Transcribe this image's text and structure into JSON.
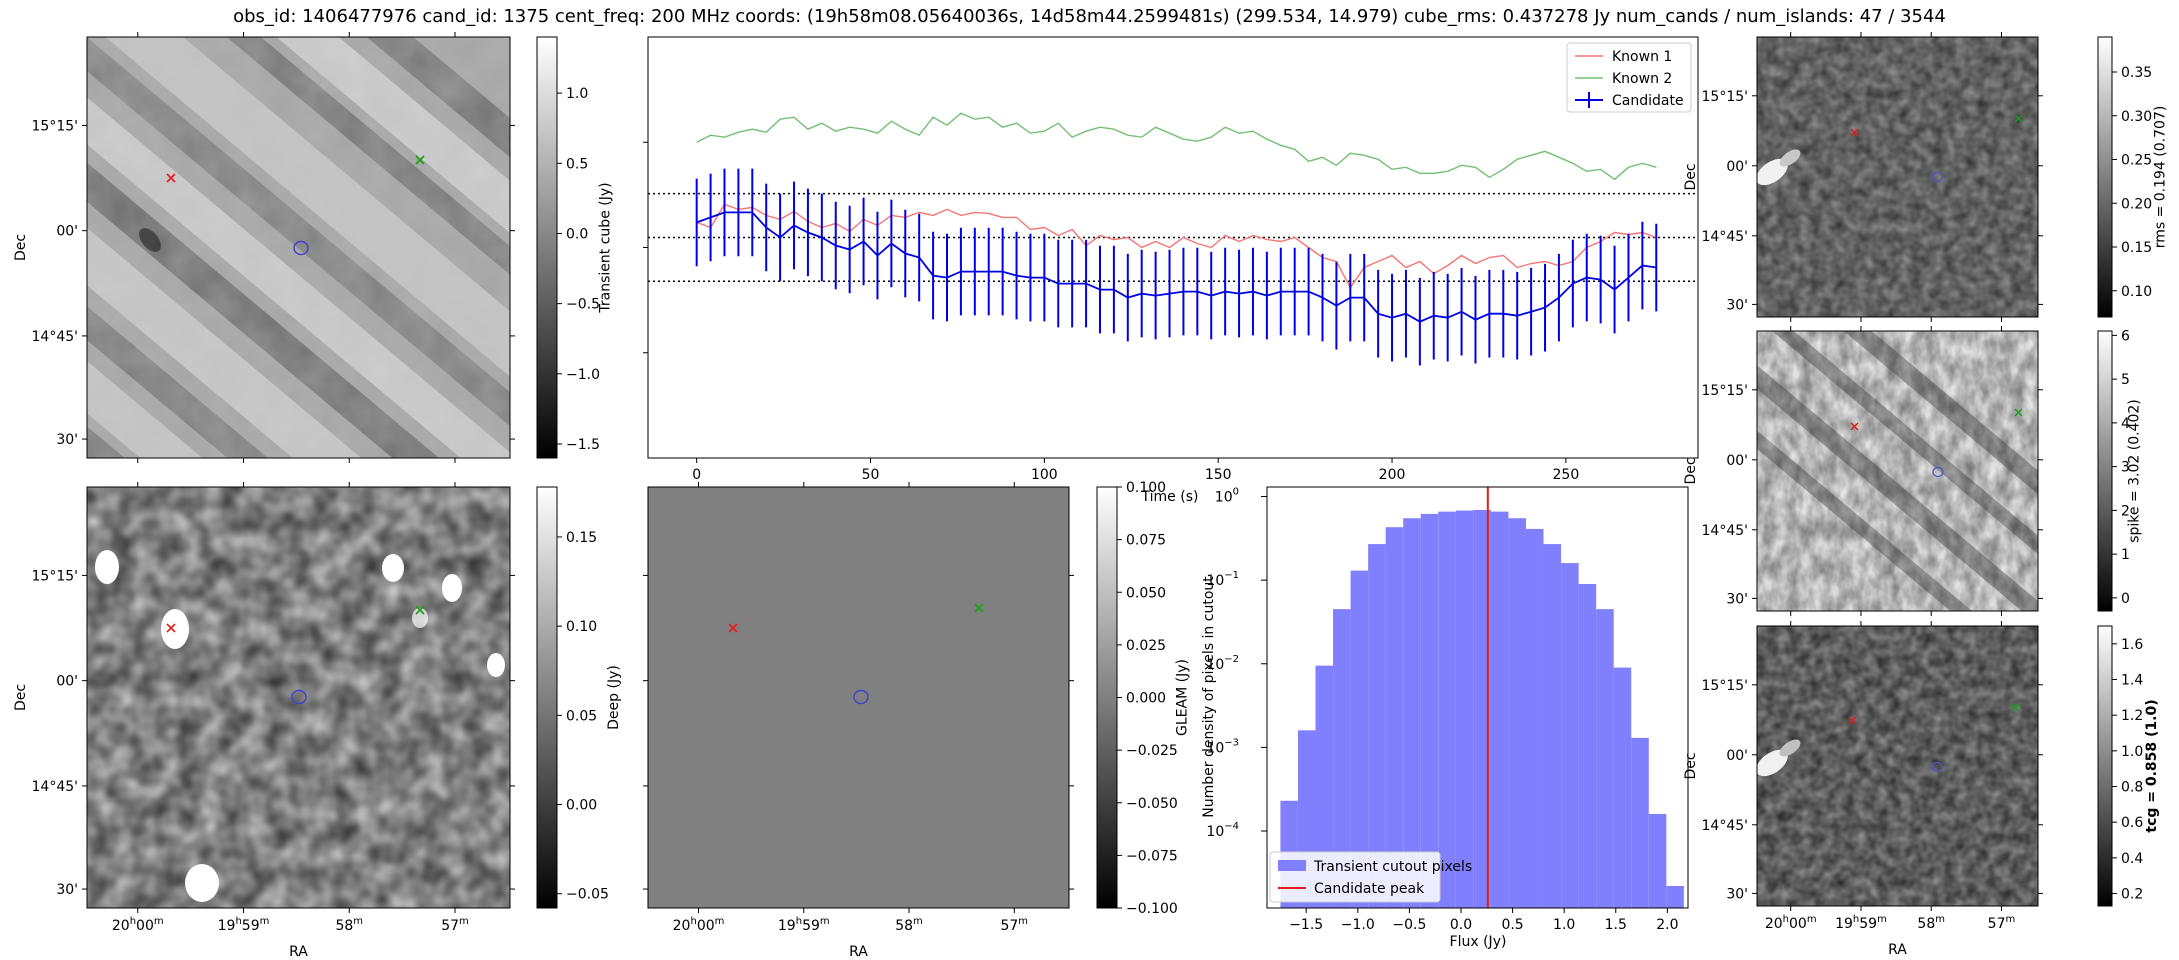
{
  "title": "obs_id: 1406477976 cand_id: 1375 cent_freq: 200 MHz coords: (19h58m08.05640036s, 14d58m44.2599481s) (299.534, 14.979) cube_rms: 0.437278 Jy num_cands / num_islands: 47 / 3544",
  "colors": {
    "known1": "#f87474",
    "known2": "#75bf75",
    "candidate": "#0000e6",
    "hist": "#8080ff",
    "peak": "#e81a1a",
    "marker_red": "#e61a1a",
    "marker_green": "#1a9e1a",
    "contour": "#4040d0"
  },
  "images": [
    {
      "id": "transient",
      "colorbar_label": "Transient cube (Jy)",
      "cbar_ticks": [
        "1.0",
        "0.5",
        "0.0",
        "−0.5",
        "−1.0",
        "−1.5"
      ],
      "cbar_values": [
        1.0,
        0.5,
        0.0,
        -0.5,
        -1.0,
        -1.5
      ],
      "vmin": -1.6,
      "vmax": 1.4,
      "dec_ticks": [
        "15°15'",
        "00'",
        "14°45'",
        "30'"
      ],
      "ylabel": "Dec"
    },
    {
      "id": "deep",
      "colorbar_label": "Deep (Jy)",
      "cbar_ticks": [
        "0.15",
        "0.10",
        "0.05",
        "0.00",
        "−0.05"
      ],
      "cbar_values": [
        0.15,
        0.1,
        0.05,
        0.0,
        -0.05
      ],
      "vmin": -0.058,
      "vmax": 0.178,
      "dec_ticks": [
        "15°15'",
        "00'",
        "14°45'",
        "30'"
      ],
      "ylabel": "Dec",
      "ra_ticks": [
        "20h00m",
        "19h59m",
        "58m",
        "57m"
      ],
      "xlabel": "RA"
    },
    {
      "id": "gleam",
      "colorbar_label": "GLEAM (Jy)",
      "cbar_ticks": [
        "0.100",
        "0.075",
        "0.050",
        "0.025",
        "0.000",
        "−0.025",
        "−0.050",
        "−0.075",
        "−0.100"
      ],
      "cbar_values": [
        0.1,
        0.075,
        0.05,
        0.025,
        0.0,
        -0.025,
        -0.05,
        -0.075,
        -0.1
      ],
      "vmin": -0.1,
      "vmax": 0.1,
      "ra_ticks": [
        "20h00m",
        "19h59m",
        "58m",
        "57m"
      ],
      "xlabel": "RA"
    },
    {
      "id": "rms",
      "colorbar_label": "rms = 0.194 (0.707)",
      "cbar_ticks": [
        "0.35",
        "0.30",
        "0.25",
        "0.20",
        "0.15",
        "0.10"
      ],
      "cbar_values": [
        0.35,
        0.3,
        0.25,
        0.2,
        0.15,
        0.1
      ],
      "vmin": 0.07,
      "vmax": 0.39,
      "dec_ticks": [
        "15°15'",
        "00'",
        "14°45'",
        "30'"
      ],
      "ylabel": "Dec"
    },
    {
      "id": "spike",
      "colorbar_label": "spike = 3.02 (0.402)",
      "cbar_ticks": [
        "6",
        "5",
        "4",
        "3",
        "2",
        "1",
        "0"
      ],
      "cbar_values": [
        6,
        5,
        4,
        3,
        2,
        1,
        0
      ],
      "vmin": -0.3,
      "vmax": 6.1,
      "dec_ticks": [
        "15°15'",
        "00'",
        "14°45'",
        "30'"
      ],
      "ylabel": "Dec"
    },
    {
      "id": "tcg",
      "colorbar_label": "tcg = 0.858 (1.0)",
      "cbar_ticks": [
        "1.6",
        "1.4",
        "1.2",
        "1.0",
        "0.8",
        "0.6",
        "0.4",
        "0.2"
      ],
      "cbar_values": [
        1.6,
        1.4,
        1.2,
        1.0,
        0.8,
        0.6,
        0.4,
        0.2
      ],
      "vmin": 0.13,
      "vmax": 1.7,
      "dec_ticks": [
        "15°15'",
        "00'",
        "14°45'",
        "30'"
      ],
      "ylabel": "Dec",
      "ra_ticks": [
        "20h00m",
        "19h59m",
        "58m",
        "57m"
      ],
      "xlabel": "RA"
    }
  ],
  "chart_data": [
    {
      "type": "line",
      "title": "",
      "xlabel": "Time (s)",
      "ylabel": "",
      "xlim": [
        -14,
        288
      ],
      "ylim": [
        -2.2,
        2.0
      ],
      "x_ticks": [
        0,
        50,
        100,
        150,
        200,
        250
      ],
      "hlines": [
        0.437,
        0.0,
        -0.437
      ],
      "legend_position": "top-right",
      "x": [
        0,
        4,
        8,
        12,
        16,
        20,
        24,
        28,
        32,
        36,
        40,
        44,
        48,
        52,
        56,
        60,
        64,
        68,
        72,
        76,
        80,
        84,
        88,
        92,
        96,
        100,
        104,
        108,
        112,
        116,
        120,
        124,
        128,
        132,
        136,
        140,
        144,
        148,
        152,
        156,
        160,
        164,
        168,
        172,
        176,
        180,
        184,
        188,
        192,
        196,
        200,
        204,
        208,
        212,
        216,
        220,
        224,
        228,
        232,
        236,
        240,
        244,
        248,
        252,
        256,
        260,
        264,
        268,
        272,
        276
      ],
      "series": [
        {
          "name": "Known 1",
          "values": [
            0.15,
            0.1,
            0.33,
            0.28,
            0.3,
            0.22,
            0.18,
            0.26,
            0.16,
            0.1,
            0.14,
            0.06,
            0.18,
            0.12,
            0.22,
            0.2,
            0.25,
            0.22,
            0.28,
            0.22,
            0.25,
            0.24,
            0.2,
            0.2,
            0.08,
            0.1,
            0.02,
            0.08,
            -0.08,
            0.02,
            -0.02,
            0.0,
            -0.1,
            -0.04,
            -0.1,
            0.0,
            -0.06,
            -0.1,
            0.02,
            -0.04,
            0.02,
            -0.02,
            -0.04,
            0.0,
            -0.1,
            -0.2,
            -0.24,
            -0.5,
            -0.3,
            -0.24,
            -0.18,
            -0.3,
            -0.24,
            -0.36,
            -0.28,
            -0.18,
            -0.26,
            -0.2,
            -0.18,
            -0.3,
            -0.26,
            -0.24,
            -0.28,
            -0.24,
            -0.1,
            -0.04,
            0.05,
            0.03,
            0.05,
            0.0
          ]
        },
        {
          "name": "Known 2",
          "values": [
            0.95,
            1.02,
            1.0,
            1.05,
            1.08,
            1.05,
            1.18,
            1.2,
            1.08,
            1.14,
            1.06,
            1.1,
            1.08,
            1.04,
            1.16,
            1.08,
            1.02,
            1.2,
            1.12,
            1.24,
            1.18,
            1.2,
            1.1,
            1.14,
            1.04,
            1.06,
            1.14,
            1.0,
            1.06,
            1.1,
            1.08,
            1.02,
            1.0,
            1.1,
            1.04,
            0.98,
            0.96,
            1.0,
            1.1,
            1.04,
            1.06,
            0.98,
            0.92,
            0.88,
            0.76,
            0.8,
            0.72,
            0.84,
            0.82,
            0.78,
            0.68,
            0.7,
            0.64,
            0.64,
            0.66,
            0.72,
            0.7,
            0.6,
            0.68,
            0.78,
            0.82,
            0.86,
            0.8,
            0.74,
            0.66,
            0.68,
            0.58,
            0.7,
            0.74,
            0.7
          ]
        },
        {
          "name": "Candidate",
          "values": [
            0.15,
            0.2,
            0.25,
            0.25,
            0.25,
            0.1,
            0.0,
            0.12,
            0.05,
            0.0,
            -0.08,
            -0.12,
            -0.04,
            -0.18,
            -0.06,
            -0.16,
            -0.2,
            -0.38,
            -0.4,
            -0.34,
            -0.34,
            -0.34,
            -0.34,
            -0.38,
            -0.4,
            -0.4,
            -0.46,
            -0.46,
            -0.46,
            -0.52,
            -0.52,
            -0.6,
            -0.56,
            -0.58,
            -0.56,
            -0.54,
            -0.54,
            -0.58,
            -0.54,
            -0.56,
            -0.54,
            -0.58,
            -0.54,
            -0.54,
            -0.54,
            -0.6,
            -0.68,
            -0.6,
            -0.6,
            -0.76,
            -0.8,
            -0.76,
            -0.84,
            -0.78,
            -0.8,
            -0.74,
            -0.82,
            -0.76,
            -0.76,
            -0.78,
            -0.74,
            -0.7,
            -0.6,
            -0.46,
            -0.4,
            -0.42,
            -0.52,
            -0.4,
            -0.28,
            -0.3
          ],
          "error": 0.437
        }
      ]
    },
    {
      "type": "bar",
      "title": "",
      "xlabel": "Flux (Jy)",
      "ylabel": "Number density of pixels in cutout",
      "yscale": "log",
      "xlim": [
        -1.88,
        2.2
      ],
      "ylim": [
        1.2e-05,
        1.3
      ],
      "x_ticks": [
        -1.5,
        -1.0,
        -0.5,
        0.0,
        0.5,
        1.0,
        1.5,
        2.0
      ],
      "x_tick_labels": [
        "−1.5",
        "−1.0",
        "−0.5",
        "0.0",
        "0.5",
        "1.0",
        "1.5",
        "2.0"
      ],
      "y_ticks": [
        1,
        0.1,
        0.01,
        0.001,
        0.0001
      ],
      "y_tick_exps": [
        "0",
        "−1",
        "−2",
        "−3",
        "−4"
      ],
      "legend_position": "bottom-left",
      "bin_edges": [
        -1.75,
        -1.58,
        -1.41,
        -1.24,
        -1.07,
        -0.9,
        -0.73,
        -0.56,
        -0.39,
        -0.22,
        -0.05,
        0.12,
        0.29,
        0.46,
        0.63,
        0.8,
        0.97,
        1.14,
        1.31,
        1.48,
        1.65,
        1.82,
        1.99,
        2.16
      ],
      "values": [
        0.00023,
        0.0016,
        0.0095,
        0.045,
        0.13,
        0.27,
        0.43,
        0.55,
        0.62,
        0.66,
        0.68,
        0.69,
        0.66,
        0.55,
        0.41,
        0.27,
        0.16,
        0.09,
        0.045,
        0.009,
        0.0013,
        0.00016,
        2.2e-05
      ],
      "series_name": "Transient cutout pixels",
      "peak_name": "Candidate peak",
      "peak_x": 0.26
    }
  ]
}
